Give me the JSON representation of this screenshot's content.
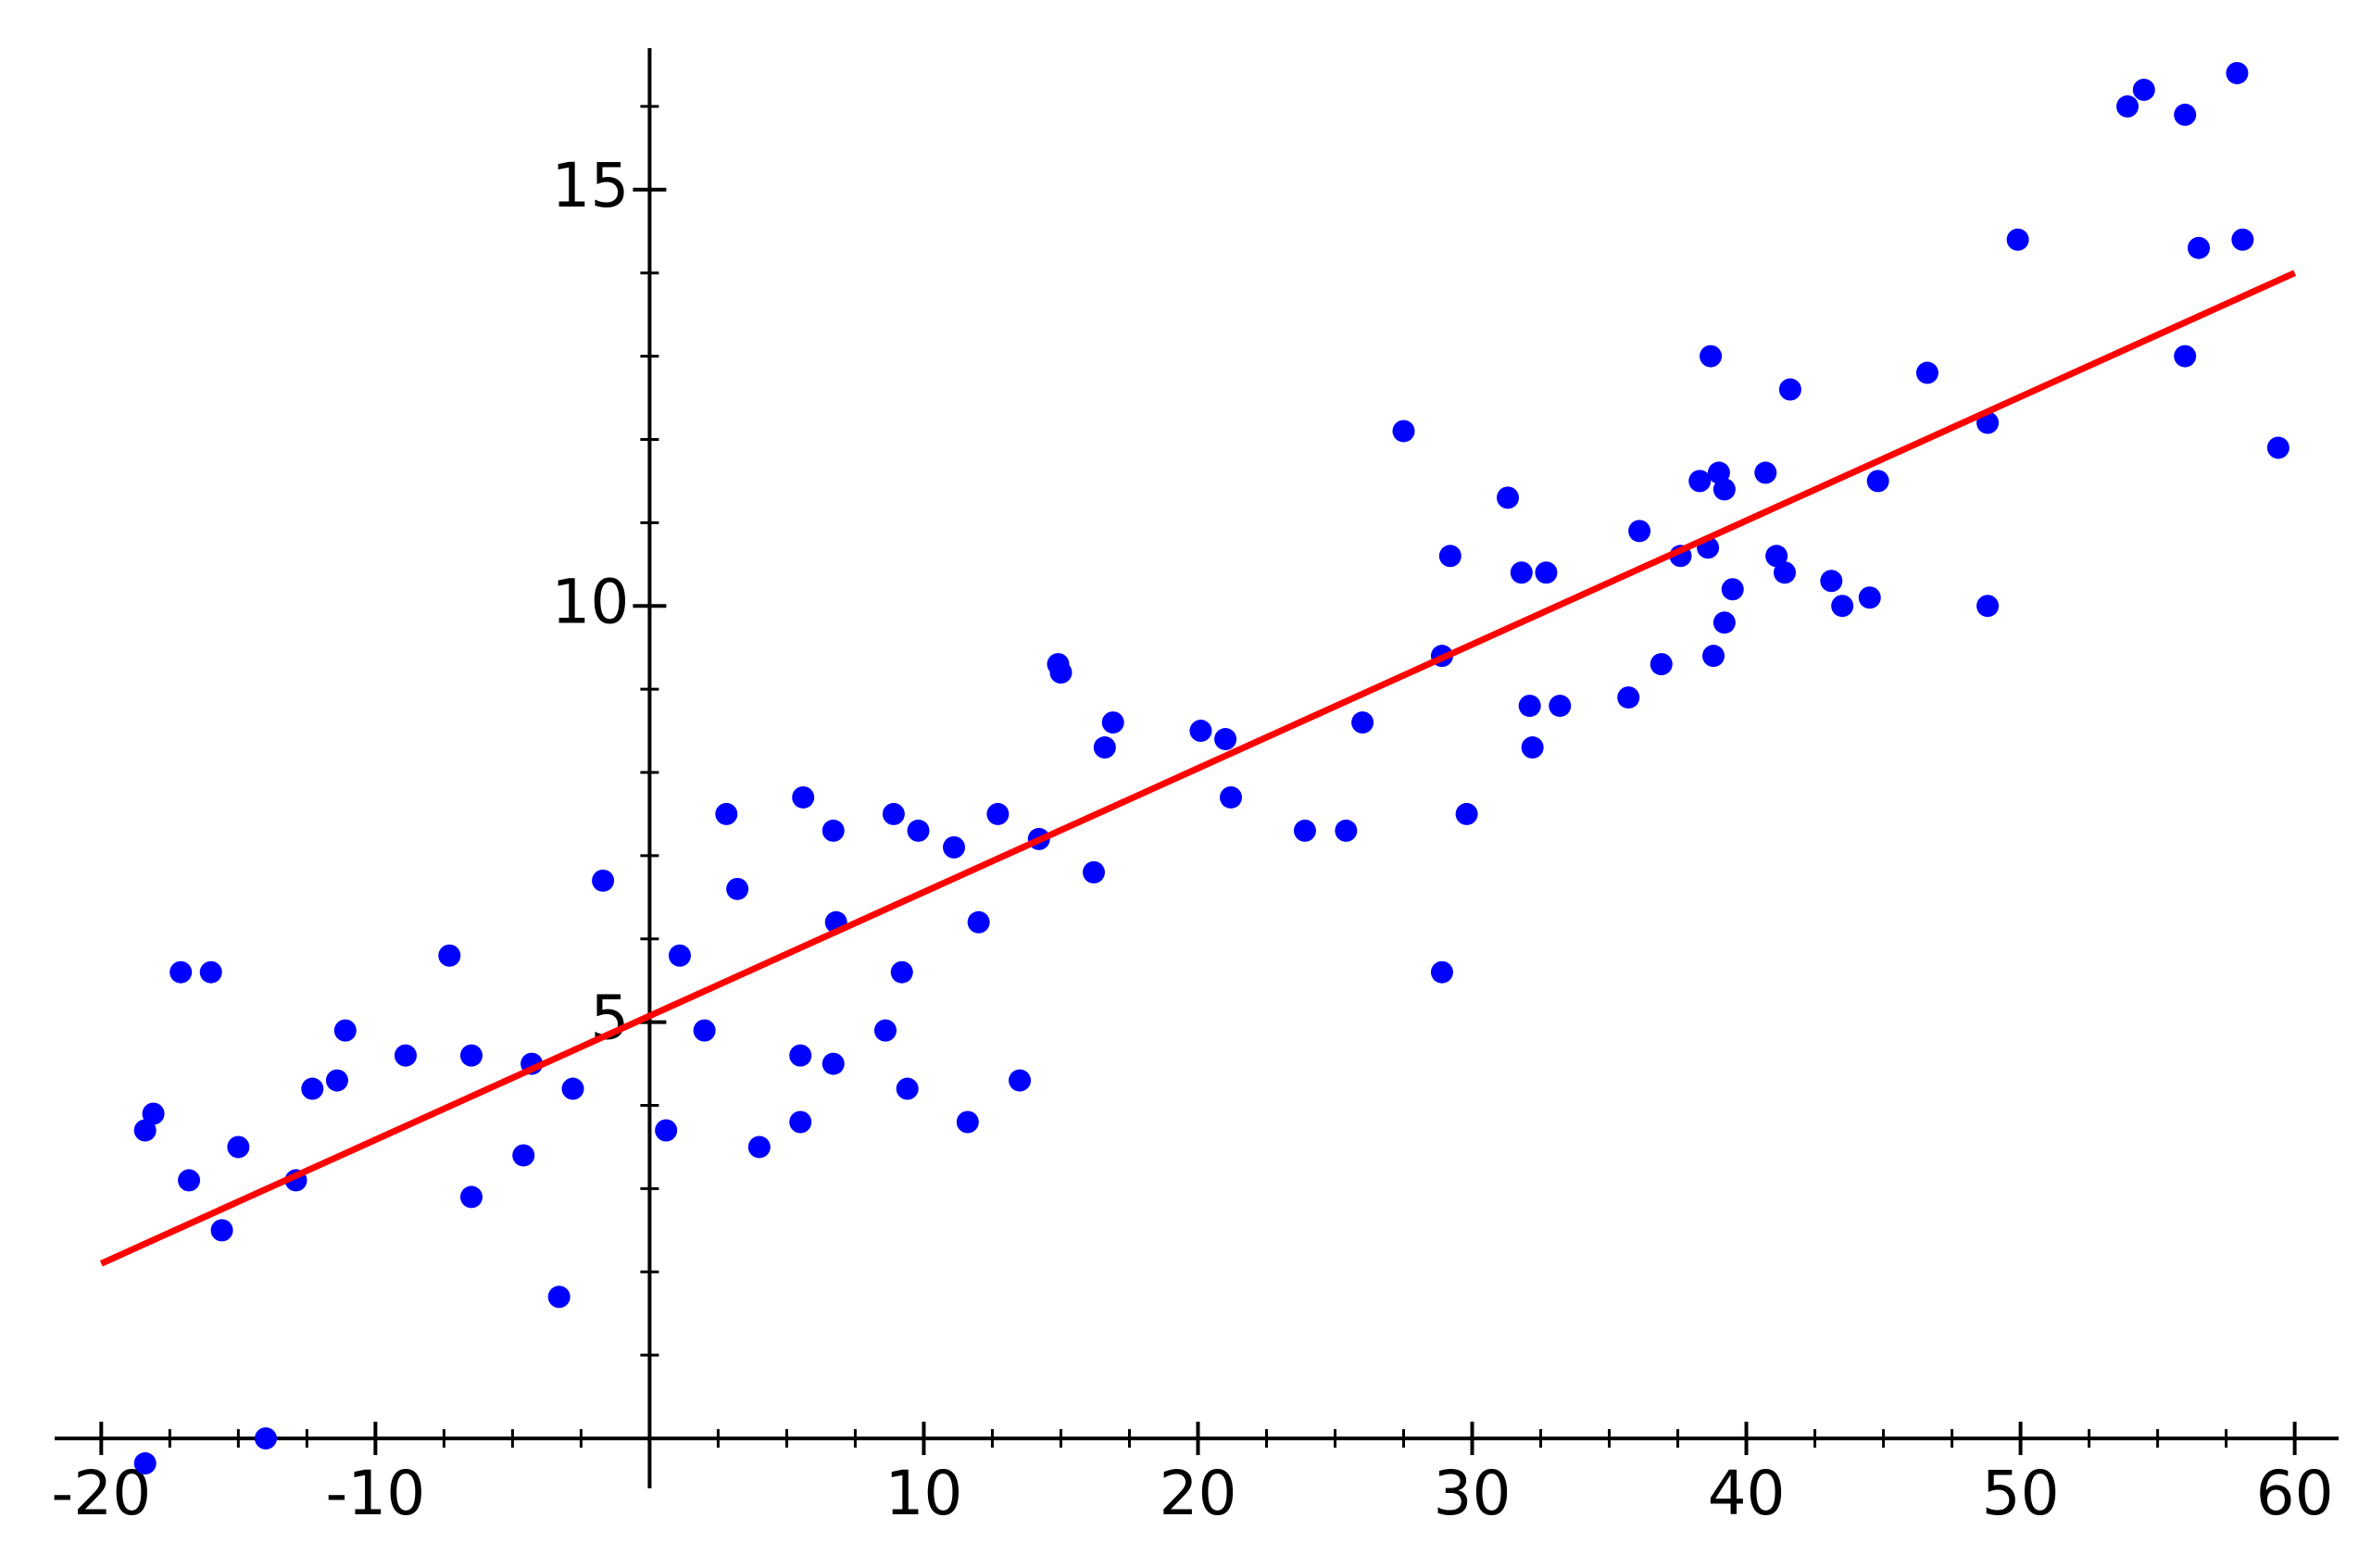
{
  "chart_data": {
    "type": "scatter",
    "color": "#0000ff",
    "x": [
      -18.4,
      -18.4,
      -18.1,
      -17.1,
      -16.0,
      -16.8,
      -15.6,
      -15.0,
      -14.0,
      -12.9,
      -12.3,
      -11.4,
      -11.1,
      -8.9,
      -7.3,
      -6.5,
      -6.5,
      -4.6,
      -4.3,
      -3.3,
      -2.8,
      -1.7,
      0.6,
      1.1,
      2.0,
      2.8,
      3.2,
      4.0,
      5.5,
      5.5,
      5.6,
      6.7,
      6.7,
      6.8,
      8.6,
      8.9,
      9.2,
      9.4,
      9.8,
      11.1,
      11.6,
      12.0,
      12.7,
      13.5,
      14.2,
      14.9,
      15.0,
      16.2,
      16.6,
      16.9,
      20.1,
      21.0,
      21.2,
      23.9,
      25.4,
      26.0,
      27.5,
      28.9,
      28.9,
      29.2,
      29.8,
      31.3,
      31.8,
      32.1,
      32.2,
      32.7,
      33.2,
      35.7,
      36.1,
      36.9,
      37.6,
      38.3,
      38.6,
      38.7,
      38.8,
      39.0,
      39.2,
      39.2,
      39.5,
      40.7,
      41.1,
      41.4,
      41.6,
      43.1,
      43.5,
      44.5,
      44.8,
      46.6,
      48.8,
      48.8,
      49.9,
      53.9,
      54.5,
      56.0,
      56.0,
      56.5,
      57.9,
      58.1,
      59.4
    ],
    "values": [
      -0.3,
      3.7,
      3.9,
      5.6,
      5.6,
      3.1,
      2.5,
      3.5,
      0.0,
      3.1,
      4.2,
      4.3,
      4.9,
      4.6,
      5.8,
      4.6,
      2.9,
      3.4,
      4.5,
      1.7,
      4.2,
      6.7,
      3.7,
      5.8,
      4.9,
      7.5,
      6.6,
      3.5,
      3.8,
      4.6,
      7.7,
      4.5,
      7.3,
      6.2,
      4.9,
      7.5,
      5.6,
      4.2,
      7.3,
      7.1,
      3.8,
      6.2,
      7.5,
      4.3,
      7.2,
      9.3,
      9.2,
      6.8,
      8.3,
      8.6,
      8.5,
      8.4,
      7.7,
      7.3,
      7.3,
      8.6,
      12.1,
      5.6,
      9.4,
      10.6,
      7.5,
      11.3,
      10.4,
      8.8,
      8.3,
      10.4,
      8.8,
      8.9,
      10.9,
      9.3,
      10.6,
      11.5,
      10.7,
      13.0,
      9.4,
      11.6,
      9.8,
      11.4,
      10.2,
      11.6,
      10.6,
      10.4,
      12.6,
      10.3,
      10.0,
      10.1,
      11.5,
      12.8,
      12.2,
      10.0,
      14.4,
      16.0,
      16.2,
      13.0,
      15.9,
      14.3,
      16.4,
      14.4,
      11.9
    ],
    "trend_line": {
      "type": "line",
      "color": "#ff0000",
      "x": [
        -20,
        60
      ],
      "values": [
        2.1,
        14.0
      ]
    },
    "xlim": [
      -21.7,
      61.6
    ],
    "ylim": [
      -0.6,
      16.7
    ],
    "xticks": [
      -20,
      -10,
      10,
      20,
      30,
      40,
      50,
      60
    ],
    "yticks": [
      5,
      10,
      15
    ],
    "xminorticks": [
      -17.5,
      -15,
      -12.5,
      -7.5,
      -5,
      -2.5,
      2.5,
      5,
      7.5,
      12.5,
      15,
      17.5,
      22.5,
      25,
      27.5,
      32.5,
      35,
      37.5,
      42.5,
      45,
      47.5,
      52.5,
      55,
      57.5
    ],
    "yminorticks": [
      1,
      2,
      3,
      4,
      6,
      7,
      8,
      9,
      11,
      12,
      13,
      14,
      16
    ]
  }
}
